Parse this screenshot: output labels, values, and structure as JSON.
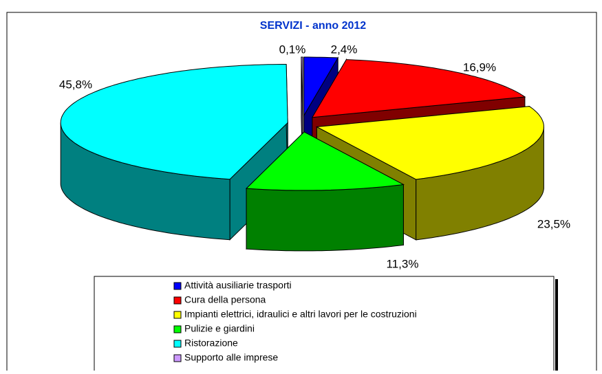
{
  "chart_data": {
    "type": "pie",
    "title": "SERVIZI - anno 2012",
    "categories": [
      "Attività ausiliarie trasporti",
      "Cura della persona",
      "Impianti elettrici, idraulici e altri lavori per le costruzioni",
      "Pulizie e giardini",
      "Ristorazione",
      "Supporto alle imprese"
    ],
    "values": [
      2.4,
      16.9,
      23.5,
      11.3,
      45.8,
      0.1
    ],
    "value_labels": [
      "2,4%",
      "16,9%",
      "23,5%",
      "11,3%",
      "45,8%",
      "0,1%"
    ],
    "colors": [
      "#0000ff",
      "#ff0000",
      "#ffff00",
      "#00ff00",
      "#00ffff",
      "#cc99ff"
    ]
  }
}
